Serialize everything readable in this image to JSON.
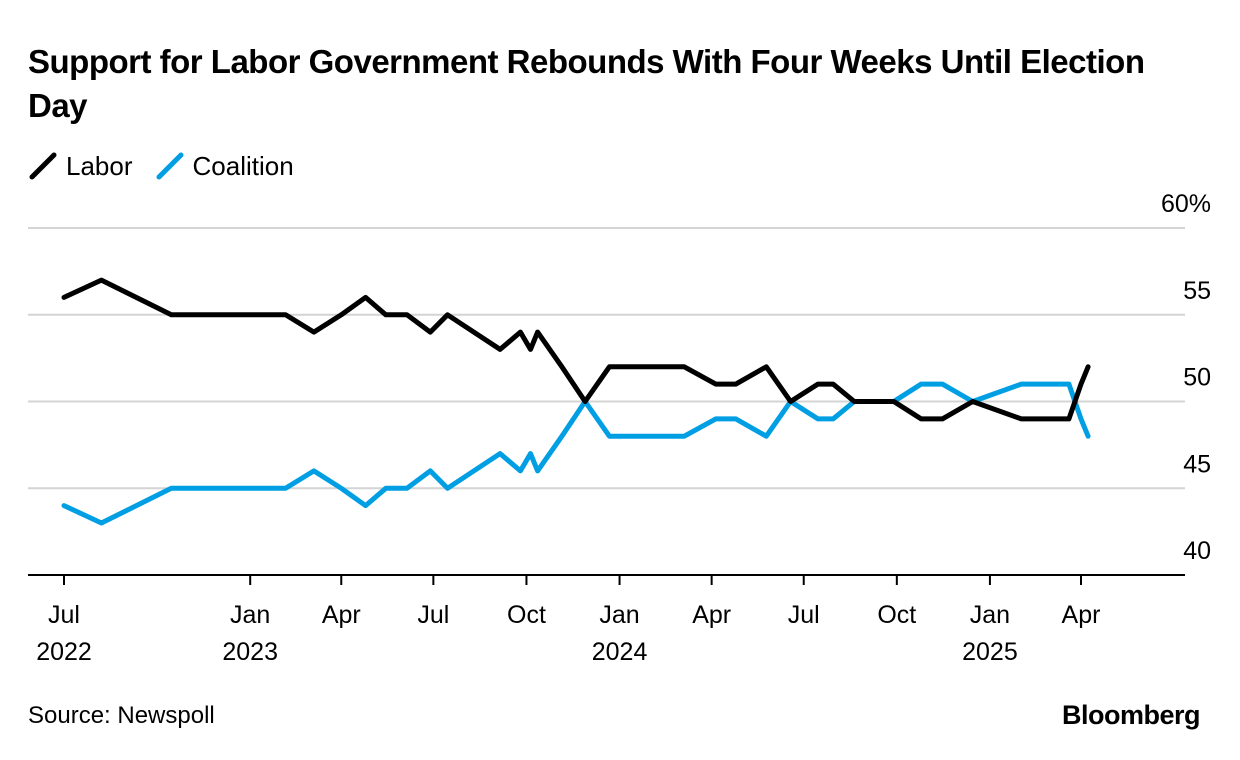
{
  "title": "Support for Labor Government Rebounds With Four Weeks Until Election Day",
  "source": "Source: Newspoll",
  "brand": "Bloomberg",
  "chart_data": {
    "type": "line",
    "title": "Support for Labor Government Rebounds With Four Weeks Until Election Day",
    "xlabel": "",
    "ylabel": "",
    "ylim": [
      40,
      60
    ],
    "yticks": [
      {
        "value": 60,
        "label": "60%"
      },
      {
        "value": 55,
        "label": "55"
      },
      {
        "value": 50,
        "label": "50"
      },
      {
        "value": 45,
        "label": "45"
      },
      {
        "value": 40,
        "label": "40"
      }
    ],
    "xlim": [
      "2022-06-25",
      "2025-06-15"
    ],
    "xticks": [
      {
        "date": "2022-07-01",
        "month": "Jul",
        "year": "2022"
      },
      {
        "date": "2023-01-01",
        "month": "Jan",
        "year": "2023"
      },
      {
        "date": "2023-04-01",
        "month": "Apr",
        "year": ""
      },
      {
        "date": "2023-07-01",
        "month": "Jul",
        "year": ""
      },
      {
        "date": "2023-10-01",
        "month": "Oct",
        "year": ""
      },
      {
        "date": "2024-01-01",
        "month": "Jan",
        "year": "2024"
      },
      {
        "date": "2024-04-01",
        "month": "Apr",
        "year": ""
      },
      {
        "date": "2024-07-01",
        "month": "Jul",
        "year": ""
      },
      {
        "date": "2024-10-01",
        "month": "Oct",
        "year": ""
      },
      {
        "date": "2025-01-01",
        "month": "Jan",
        "year": "2025"
      },
      {
        "date": "2025-04-01",
        "month": "Apr",
        "year": ""
      }
    ],
    "grid": true,
    "legend": "top-left",
    "series": [
      {
        "name": "Labor",
        "color": "#000000",
        "points": [
          [
            "2022-07-01",
            56
          ],
          [
            "2022-08-07",
            57
          ],
          [
            "2022-10-15",
            55
          ],
          [
            "2022-12-10",
            55
          ],
          [
            "2023-02-05",
            55
          ],
          [
            "2023-03-05",
            54
          ],
          [
            "2023-04-01",
            55
          ],
          [
            "2023-04-25",
            56
          ],
          [
            "2023-05-15",
            55
          ],
          [
            "2023-06-05",
            55
          ],
          [
            "2023-06-28",
            54
          ],
          [
            "2023-07-15",
            55
          ],
          [
            "2023-09-05",
            53
          ],
          [
            "2023-09-25",
            54
          ],
          [
            "2023-10-05",
            53
          ],
          [
            "2023-10-12",
            54
          ],
          [
            "2023-11-05",
            52
          ],
          [
            "2023-11-28",
            50
          ],
          [
            "2023-12-22",
            52
          ],
          [
            "2024-03-05",
            52
          ],
          [
            "2024-04-05",
            51
          ],
          [
            "2024-04-25",
            51
          ],
          [
            "2024-05-25",
            52
          ],
          [
            "2024-06-18",
            50
          ],
          [
            "2024-07-15",
            51
          ],
          [
            "2024-07-30",
            51
          ],
          [
            "2024-08-20",
            50
          ],
          [
            "2024-09-28",
            50
          ],
          [
            "2024-10-25",
            49
          ],
          [
            "2024-11-15",
            49
          ],
          [
            "2024-12-15",
            50
          ],
          [
            "2025-02-01",
            49
          ],
          [
            "2025-03-20",
            49
          ],
          [
            "2025-04-01",
            51
          ],
          [
            "2025-04-08",
            52
          ]
        ]
      },
      {
        "name": "Coalition",
        "color": "#009FE3",
        "points": [
          [
            "2022-07-01",
            44
          ],
          [
            "2022-08-07",
            43
          ],
          [
            "2022-10-15",
            45
          ],
          [
            "2022-12-10",
            45
          ],
          [
            "2023-02-05",
            45
          ],
          [
            "2023-03-05",
            46
          ],
          [
            "2023-04-01",
            45
          ],
          [
            "2023-04-25",
            44
          ],
          [
            "2023-05-15",
            45
          ],
          [
            "2023-06-05",
            45
          ],
          [
            "2023-06-28",
            46
          ],
          [
            "2023-07-15",
            45
          ],
          [
            "2023-09-05",
            47
          ],
          [
            "2023-09-25",
            46
          ],
          [
            "2023-10-05",
            47
          ],
          [
            "2023-10-12",
            46
          ],
          [
            "2023-11-05",
            48
          ],
          [
            "2023-11-28",
            50
          ],
          [
            "2023-12-22",
            48
          ],
          [
            "2024-03-05",
            48
          ],
          [
            "2024-04-05",
            49
          ],
          [
            "2024-04-25",
            49
          ],
          [
            "2024-05-25",
            48
          ],
          [
            "2024-06-18",
            50
          ],
          [
            "2024-07-15",
            49
          ],
          [
            "2024-07-30",
            49
          ],
          [
            "2024-08-20",
            50
          ],
          [
            "2024-09-28",
            50
          ],
          [
            "2024-10-25",
            51
          ],
          [
            "2024-11-15",
            51
          ],
          [
            "2024-12-15",
            50
          ],
          [
            "2025-02-01",
            51
          ],
          [
            "2025-03-20",
            51
          ],
          [
            "2025-04-01",
            49
          ],
          [
            "2025-04-08",
            48
          ]
        ]
      }
    ]
  }
}
